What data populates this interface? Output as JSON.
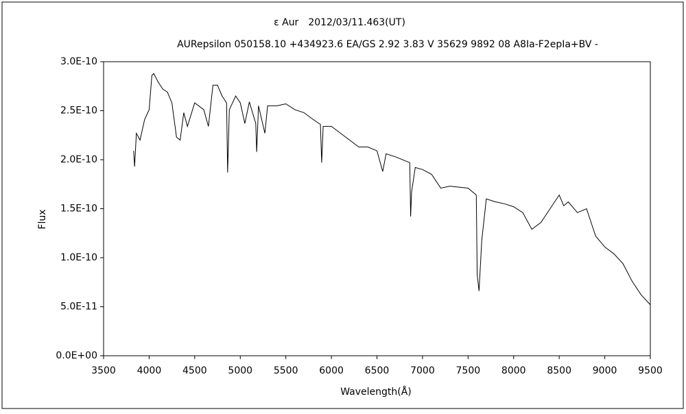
{
  "chart_data": {
    "type": "line",
    "title": "ε Aur　2012/03/11.463(UT)",
    "subtitle": "AURepsilon 050158.10 +434923.6 EA/GS 2.92 3.83 V 35629 9892 08 A8Ia-F2epIa+BV -",
    "x_label": "Wavelength(Å)",
    "y_label": "Flux",
    "xlim": [
      3500,
      9500
    ],
    "xticks": [
      3500,
      4000,
      4500,
      5000,
      5500,
      6000,
      6500,
      7000,
      7500,
      8000,
      8500,
      9000,
      9500
    ],
    "ylim": [
      0,
      3e-10
    ],
    "yticks": [
      {
        "value": 0,
        "label": "0.0E+00"
      },
      {
        "value": 5e-11,
        "label": "5.0E-11"
      },
      {
        "value": 1e-10,
        "label": "1.0E-10"
      },
      {
        "value": 1.5e-10,
        "label": "1.5E-10"
      },
      {
        "value": 2e-10,
        "label": "2.0E-10"
      },
      {
        "value": 2.5e-10,
        "label": "2.5E-10"
      },
      {
        "value": 3e-10,
        "label": "3.0E-10"
      }
    ],
    "grid": false,
    "x": [
      3830,
      3840,
      3860,
      3900,
      3950,
      4000,
      4030,
      4050,
      4100,
      4150,
      4200,
      4250,
      4300,
      4340,
      4380,
      4420,
      4500,
      4600,
      4650,
      4700,
      4750,
      4800,
      4850,
      4861,
      4880,
      4950,
      5000,
      5050,
      5100,
      5170,
      5180,
      5200,
      5270,
      5300,
      5400,
      5500,
      5600,
      5700,
      5800,
      5880,
      5893,
      5910,
      6000,
      6100,
      6200,
      6300,
      6400,
      6500,
      6563,
      6600,
      6700,
      6860,
      6870,
      6880,
      6920,
      7000,
      7100,
      7200,
      7300,
      7500,
      7590,
      7600,
      7620,
      7650,
      7700,
      7800,
      7900,
      8000,
      8100,
      8200,
      8300,
      8400,
      8500,
      8550,
      8600,
      8700,
      8800,
      8900,
      9000,
      9100,
      9200,
      9300,
      9400,
      9500
    ],
    "series": [
      {
        "name": "Flux",
        "color": "#000000",
        "values": [
          2.09e-10,
          1.93e-10,
          2.27e-10,
          2.2e-10,
          2.41e-10,
          2.51e-10,
          2.86e-10,
          2.88e-10,
          2.79e-10,
          2.72e-10,
          2.69e-10,
          2.58e-10,
          2.23e-10,
          2.2e-10,
          2.48e-10,
          2.34e-10,
          2.58e-10,
          2.51e-10,
          2.34e-10,
          2.76e-10,
          2.76e-10,
          2.65e-10,
          2.58e-10,
          1.87e-10,
          2.51e-10,
          2.65e-10,
          2.58e-10,
          2.37e-10,
          2.59e-10,
          2.37e-10,
          2.08e-10,
          2.55e-10,
          2.27e-10,
          2.55e-10,
          2.55e-10,
          2.57e-10,
          2.51e-10,
          2.48e-10,
          2.41e-10,
          2.36e-10,
          1.97e-10,
          2.34e-10,
          2.34e-10,
          2.27e-10,
          2.2e-10,
          2.13e-10,
          2.13e-10,
          2.09e-10,
          1.88e-10,
          2.06e-10,
          2.03e-10,
          1.97e-10,
          1.42e-10,
          1.67e-10,
          1.92e-10,
          1.9e-10,
          1.85e-10,
          1.71e-10,
          1.73e-10,
          1.71e-10,
          1.64e-10,
          8.3e-11,
          6.6e-11,
          1.18e-10,
          1.6e-10,
          1.57e-10,
          1.55e-10,
          1.52e-10,
          1.46e-10,
          1.29e-10,
          1.36e-10,
          1.5e-10,
          1.64e-10,
          1.53e-10,
          1.57e-10,
          1.46e-10,
          1.5e-10,
          1.22e-10,
          1.11e-10,
          1.04e-10,
          9.4e-11,
          7.6e-11,
          6.2e-11,
          5.2e-11
        ]
      }
    ]
  }
}
